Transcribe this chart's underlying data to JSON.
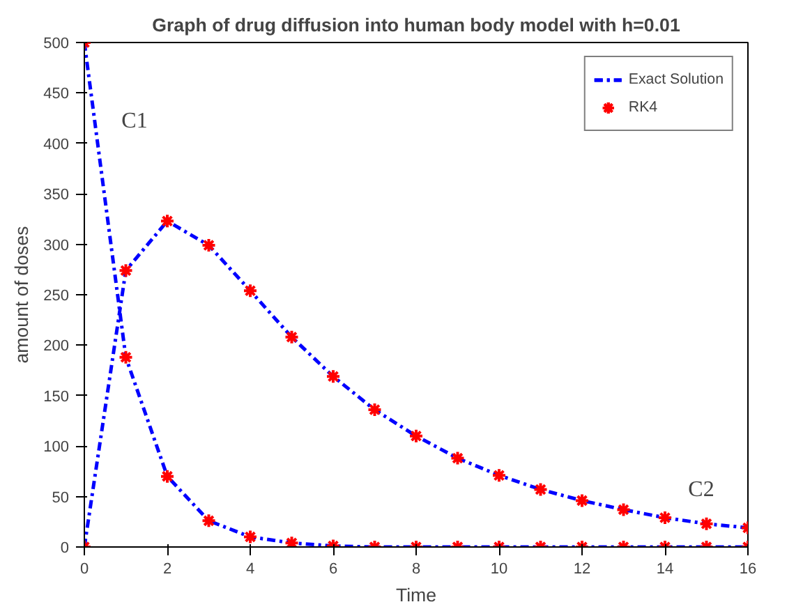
{
  "chart_data": {
    "type": "line",
    "title": "Graph of drug diffusion into human body model with h=0.01",
    "xlabel": "Time",
    "ylabel": "amount of doses",
    "x": [
      0,
      1,
      2,
      3,
      4,
      5,
      6,
      7,
      8,
      9,
      10,
      11,
      12,
      13,
      14,
      15,
      16
    ],
    "series": [
      {
        "name": "Exact Solution",
        "color": "#0000ff",
        "line_style": "dashed",
        "marker": "none",
        "values": [
          500,
          188,
          70,
          26,
          10,
          4,
          1,
          0,
          0,
          0,
          0,
          0,
          0,
          0,
          0,
          0,
          0
        ]
      },
      {
        "color": "#0000ff",
        "line_style": "dashed",
        "marker": "none",
        "values": [
          0,
          274,
          323,
          299,
          254,
          208,
          169,
          136,
          110,
          88,
          71,
          57,
          46,
          37,
          29,
          23,
          19
        ]
      },
      {
        "name": "RK4",
        "type": "scatter",
        "color": "#ff0000",
        "marker": "cross",
        "values": [
          500,
          188,
          70,
          26,
          10,
          4,
          1,
          0,
          0,
          0,
          0,
          0,
          0,
          0,
          0,
          0,
          0
        ]
      },
      {
        "type": "scatter",
        "color": "#ff0000",
        "marker": "cross",
        "values": [
          0,
          274,
          323,
          299,
          254,
          208,
          169,
          136,
          110,
          88,
          71,
          57,
          46,
          37,
          29,
          23,
          19
        ]
      }
    ],
    "xlim": [
      0,
      16
    ],
    "xticks": [
      0,
      2,
      4,
      6,
      8,
      10,
      12,
      14,
      16
    ],
    "ylim": [
      0,
      500
    ],
    "yticks": [
      0,
      50,
      100,
      150,
      200,
      250,
      300,
      350,
      400,
      450,
      500
    ],
    "grid": false,
    "legend": "top right",
    "annotations": [
      "C1",
      "C2"
    ]
  }
}
